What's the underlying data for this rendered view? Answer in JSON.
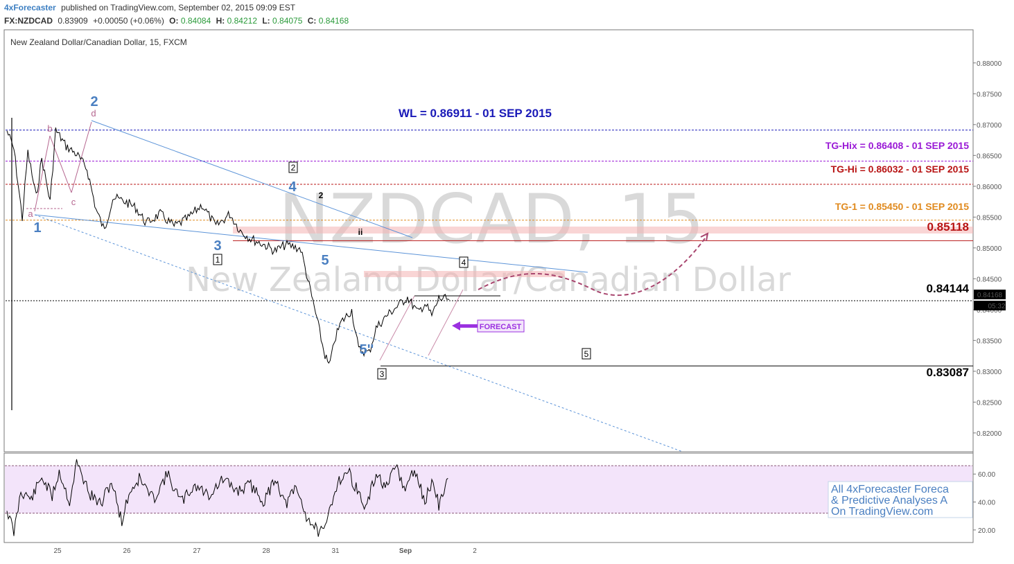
{
  "header": {
    "publisher": "4xForecaster",
    "published_text": "published on TradingView.com, September 02, 2015 09:09 EST",
    "symbol": "FX:NZDCAD",
    "last": "0.83909",
    "change": "+0.00050 (+0.06%)",
    "o_label": "O:",
    "o_value": "0.84084",
    "h_label": "H:",
    "h_value": "0.84212",
    "l_label": "L:",
    "l_value": "0.84075",
    "c_label": "C:",
    "c_value": "0.84168"
  },
  "pane_title": "New Zealand Dollar/Canadian Dollar, 15, FXCM",
  "watermark": {
    "line1": "NZDCAD, 15",
    "line2": "New Zealand Dollar/Canadian Dollar"
  },
  "colors": {
    "wl": "#1a1ab8",
    "tg_hix": "#9a1ad6",
    "tg_hi": "#b81414",
    "tg1": "#e08a1e",
    "wave_blue": "#4a7fc1",
    "wave_pink": "#b5668f",
    "forecast_purple": "#9b30e0",
    "forecast_path": "#a8456e",
    "zone": "#f4b3b3"
  },
  "levels": {
    "wl": "WL = 0.86911 - 01 SEP 2015",
    "tg_hix": "TG-Hix = 0.86408 - 01 SEP 2015",
    "tg_hi": "TG-Hi = 0.86032 - 01 SEP 2015",
    "tg1": "TG-1 = 0.85450 - 01 SEP 2015",
    "resistance": "0.85118",
    "pivot": "0.84144",
    "support": "0.83087"
  },
  "badges": {
    "price": "0.84168",
    "time": "05:32"
  },
  "forecast_label": "FORECAST",
  "wave_labels": {
    "w1": "1",
    "w2": "2",
    "w3": "3",
    "w4": "4",
    "w5": "5",
    "w5pp": "5''",
    "a": "a",
    "b": "b",
    "c": "c",
    "d": "d",
    "sub2": "2",
    "subii": "ii",
    "box1": "1",
    "box2": "2",
    "box3": "3",
    "box4": "4",
    "box5": "5"
  },
  "promo": [
    "All 4xForecaster Foreca",
    "& Predictive Analyses A",
    "On TradingView.com"
  ],
  "chart_data": [
    {
      "type": "line",
      "title": "New Zealand Dollar/Canadian Dollar, 15, FXCM",
      "x_ticks": [
        "25",
        "26",
        "27",
        "28",
        "31",
        "Sep",
        "2"
      ],
      "y_ticks": [
        "0.88000",
        "0.87500",
        "0.87000",
        "0.86500",
        "0.86000",
        "0.85500",
        "0.85000",
        "0.84500",
        "0.84000",
        "0.83500",
        "0.83000",
        "0.82500",
        "0.82000"
      ],
      "ylim": [
        0.8165,
        0.882
      ],
      "horizontal_levels": [
        0.86911,
        0.86408,
        0.86032,
        0.8545,
        0.85118,
        0.84144,
        0.83087
      ],
      "series": [
        {
          "x": [
            0,
            0.1,
            0.22,
            0.3,
            0.42,
            0.5,
            0.62,
            0.7,
            0.85,
            1.0,
            1.15,
            1.28,
            1.4,
            1.52,
            1.7,
            1.85,
            2.0,
            2.2,
            2.4,
            2.6,
            2.8,
            3.0,
            3.2,
            3.35,
            3.5,
            3.7,
            3.85,
            4.0,
            4.12,
            4.22,
            4.32,
            4.45,
            4.55,
            4.62,
            4.66,
            4.7,
            4.8,
            4.95,
            5.05,
            5.2,
            5.3,
            5.45,
            5.6,
            5.75,
            5.9,
            6.0,
            6.1,
            6.2,
            6.35
          ],
          "values": [
            0.869,
            0.866,
            0.8548,
            0.8655,
            0.8582,
            0.8645,
            0.8575,
            0.8691,
            0.8665,
            0.8652,
            0.8628,
            0.8562,
            0.8528,
            0.8582,
            0.8575,
            0.8565,
            0.854,
            0.8555,
            0.8535,
            0.8548,
            0.857,
            0.8535,
            0.8555,
            0.8528,
            0.8515,
            0.8505,
            0.8495,
            0.8505,
            0.8502,
            0.8498,
            0.8448,
            0.8385,
            0.8332,
            0.8309,
            0.8322,
            0.835,
            0.838,
            0.8399,
            0.8335,
            0.833,
            0.837,
            0.839,
            0.8405,
            0.842,
            0.8395,
            0.841,
            0.839,
            0.8418,
            0.8416
          ]
        }
      ]
    },
    {
      "type": "line",
      "title": "",
      "y_ticks": [
        "60.00",
        "40.00",
        "20.00"
      ],
      "ylim": [
        12,
        72
      ],
      "bands": [
        66,
        32
      ],
      "series": [
        {
          "x": [
            0,
            0.1,
            0.2,
            0.35,
            0.5,
            0.65,
            0.75,
            0.9,
            1.0,
            1.2,
            1.35,
            1.5,
            1.65,
            1.75,
            1.9,
            2.1,
            2.3,
            2.5,
            2.7,
            2.9,
            3.1,
            3.3,
            3.5,
            3.7,
            3.85,
            4.0,
            4.15,
            4.3,
            4.45,
            4.55,
            4.65,
            4.75,
            4.9,
            5.05,
            5.15,
            5.3,
            5.45,
            5.6,
            5.7,
            5.85,
            6.0,
            6.1,
            6.2,
            6.35
          ],
          "values": [
            35,
            18,
            48,
            42,
            58,
            44,
            62,
            40,
            68,
            45,
            38,
            55,
            26,
            46,
            57,
            42,
            60,
            40,
            52,
            45,
            56,
            48,
            52,
            40,
            58,
            38,
            50,
            30,
            20,
            17,
            38,
            55,
            62,
            46,
            35,
            60,
            50,
            66,
            48,
            63,
            40,
            55,
            38,
            60
          ]
        }
      ]
    }
  ]
}
